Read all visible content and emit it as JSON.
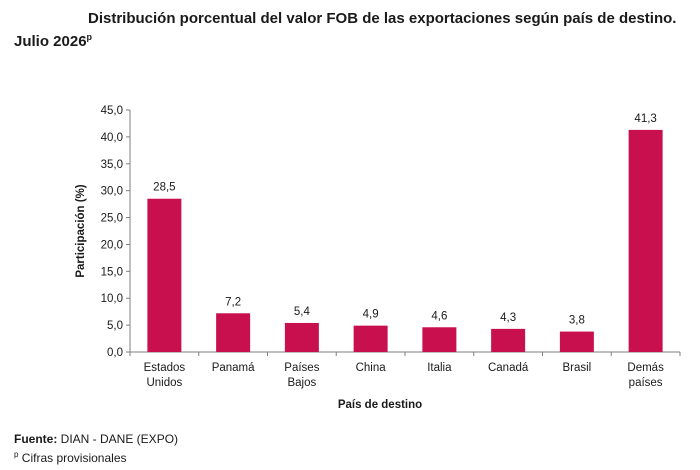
{
  "header": {
    "title": "Distribución porcentual del valor FOB de las exportaciones según país de destino.",
    "subtitle": "Julio 2026",
    "subtitle_mark": "p"
  },
  "footer": {
    "source_label": "Fuente:",
    "source_text": " DIAN - DANE (EXPO)",
    "note_mark": "p",
    "note_text": " Cifras provisionales"
  },
  "colors": {
    "bar": "#c8104f",
    "axis": "#7f7f7f"
  },
  "chart_data": {
    "type": "bar",
    "xlabel": "País de destino",
    "ylabel": "Participación (%)",
    "ylim": [
      0,
      45
    ],
    "yticks": [
      "0,0",
      "5,0",
      "10,0",
      "15,0",
      "20,0",
      "25,0",
      "30,0",
      "35,0",
      "40,0",
      "45,0"
    ],
    "grid": false,
    "categories": [
      [
        "Estados",
        "Unidos"
      ],
      [
        "Panamá"
      ],
      [
        "Países",
        "Bajos"
      ],
      [
        "China"
      ],
      [
        "Italia"
      ],
      [
        "Canadá"
      ],
      [
        "Brasil"
      ],
      [
        "Demás",
        "países"
      ]
    ],
    "values": [
      28.5,
      7.2,
      5.4,
      4.9,
      4.6,
      4.3,
      3.8,
      41.3
    ],
    "value_labels": [
      "28,5",
      "7,2",
      "5,4",
      "4,9",
      "4,6",
      "4,3",
      "3,8",
      "41,3"
    ]
  }
}
